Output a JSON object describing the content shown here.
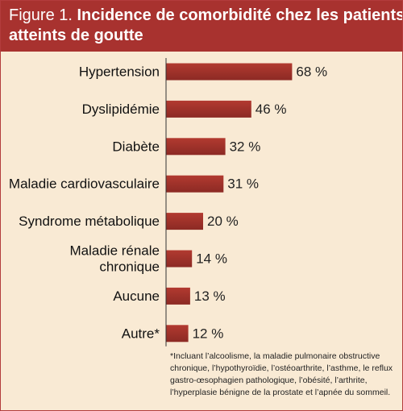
{
  "header": {
    "figure_label": "Figure 1.",
    "title_line1": "Incidence de comorbidité chez les patients",
    "title_line2": "atteints de goutte"
  },
  "colors": {
    "header_bg": "#a8322f",
    "panel_bg": "#f9ead4",
    "bar": "#b23a30",
    "bar_dark": "#8c2a24"
  },
  "chart_data": {
    "type": "bar",
    "orientation": "horizontal",
    "title": "Incidence de comorbidité chez les patients atteints de goutte",
    "categories": [
      [
        "Hypertension"
      ],
      [
        "Dyslipidémie"
      ],
      [
        "Diabète"
      ],
      [
        "Maladie cardiovasculaire"
      ],
      [
        "Syndrome métabolique"
      ],
      [
        "Maladie rénale",
        "chronique"
      ],
      [
        "Aucune"
      ],
      [
        "Autre*"
      ]
    ],
    "values": [
      68,
      46,
      32,
      31,
      20,
      14,
      13,
      12
    ],
    "value_labels": [
      "68 %",
      "46 %",
      "32 %",
      "31 %",
      "20 %",
      "14 %",
      "13 %",
      "12 %"
    ],
    "xlim": [
      0,
      100
    ],
    "grid": false,
    "legend": false
  },
  "footnote": [
    "*Incluant l’alcoolisme, la maladie pulmonaire obstructive",
    "chronique, l’hypothyroïdie, l’ostéoarthrite, l’asthme, le reflux",
    "gastro-œsophagien pathologique, l’obésité, l’arthrite,",
    "l’hyperplasie bénigne de la prostate et l’apnée du sommeil."
  ]
}
